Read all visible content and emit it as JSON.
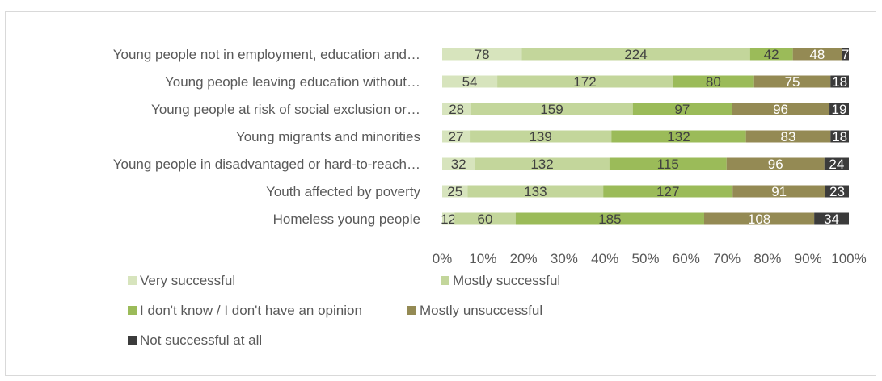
{
  "chart_data": {
    "type": "bar",
    "orientation": "horizontal",
    "stacked": "percent",
    "categories": [
      "Young people not in employment, education and…",
      "Young people leaving education without…",
      "Young people at risk of social exclusion or…",
      "Young migrants and minorities",
      "Young people in disadvantaged or hard-to-reach…",
      "Youth affected by poverty",
      "Homeless young people"
    ],
    "series": [
      {
        "name": "Very successful",
        "color": "#d7e4bd",
        "label_color": "#404040",
        "values": [
          78,
          54,
          28,
          27,
          32,
          25,
          12
        ]
      },
      {
        "name": "Mostly successful",
        "color": "#c3d69b",
        "label_color": "#404040",
        "values": [
          224,
          172,
          159,
          139,
          132,
          133,
          60
        ]
      },
      {
        "name": "I don't know / I don't have an opinion",
        "color": "#9bbb59",
        "label_color": "#404040",
        "values": [
          42,
          80,
          97,
          132,
          115,
          127,
          185
        ]
      },
      {
        "name": "Mostly unsuccessful",
        "color": "#948a54",
        "label_color": "#ffffff",
        "values": [
          48,
          75,
          96,
          83,
          96,
          91,
          108
        ]
      },
      {
        "name": "Not successful at all",
        "color": "#3b3b3b",
        "label_color": "#ffffff",
        "values": [
          7,
          18,
          19,
          18,
          24,
          23,
          34
        ]
      }
    ],
    "xaxis_ticks": [
      "0%",
      "10%",
      "20%",
      "30%",
      "40%",
      "50%",
      "60%",
      "70%",
      "80%",
      "90%",
      "100%"
    ],
    "xlim": [
      0,
      100
    ],
    "grid": false,
    "legend_position": "bottom",
    "title": "",
    "xlabel": "",
    "ylabel": ""
  }
}
